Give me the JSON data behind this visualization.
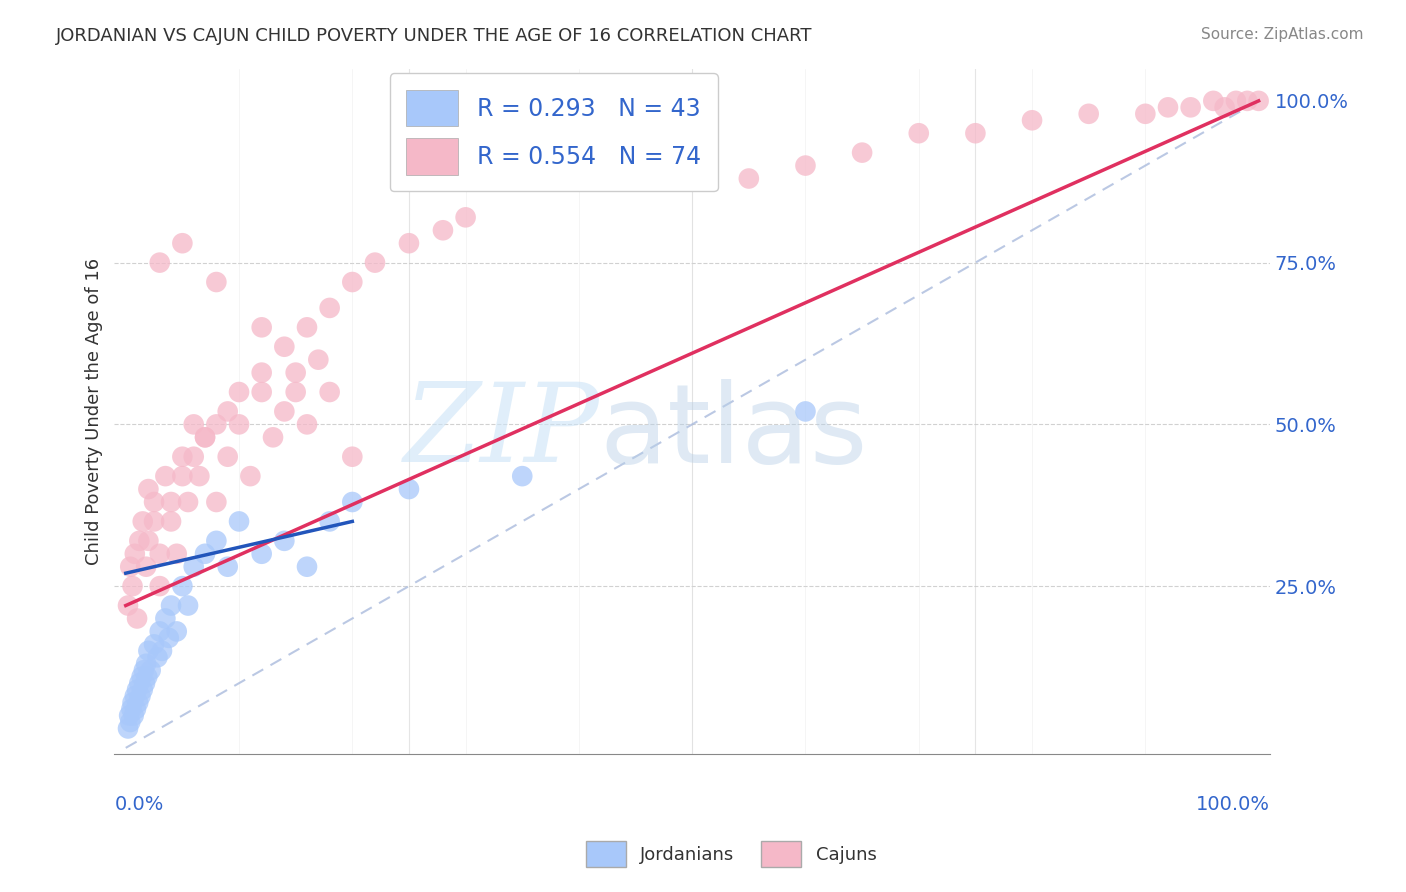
{
  "title": "JORDANIAN VS CAJUN CHILD POVERTY UNDER THE AGE OF 16 CORRELATION CHART",
  "source": "Source: ZipAtlas.com",
  "ylabel": "Child Poverty Under the Age of 16",
  "xlim": [
    -0.01,
    1.01
  ],
  "ylim": [
    -0.01,
    1.05
  ],
  "right_yticks": [
    0.25,
    0.5,
    0.75,
    1.0
  ],
  "right_yticklabels": [
    "25.0%",
    "50.0%",
    "75.0%",
    "100.0%"
  ],
  "x_left_label": "0.0%",
  "x_right_label": "100.0%",
  "legend1_label": "R = 0.293   N = 43",
  "legend2_label": "R = 0.554   N = 74",
  "legend_group1": "Jordanians",
  "legend_group2": "Cajuns",
  "blue_color": "#a8c8fa",
  "pink_color": "#f5b8c8",
  "blue_line_color": "#2255bb",
  "pink_line_color": "#e03060",
  "grid_color": "#cccccc",
  "pink_line_x0": 0.0,
  "pink_line_y0": 0.22,
  "pink_line_x1": 1.0,
  "pink_line_y1": 1.0,
  "blue_line_x0": 0.0,
  "blue_line_y0": 0.27,
  "blue_line_x1": 0.2,
  "blue_line_y1": 0.35,
  "jordanian_x": [
    0.002,
    0.003,
    0.004,
    0.005,
    0.006,
    0.007,
    0.008,
    0.009,
    0.01,
    0.011,
    0.012,
    0.013,
    0.014,
    0.015,
    0.016,
    0.017,
    0.018,
    0.019,
    0.02,
    0.022,
    0.025,
    0.028,
    0.03,
    0.032,
    0.035,
    0.038,
    0.04,
    0.045,
    0.05,
    0.055,
    0.06,
    0.07,
    0.08,
    0.09,
    0.1,
    0.12,
    0.14,
    0.16,
    0.18,
    0.2,
    0.25,
    0.35,
    0.6
  ],
  "jordanian_y": [
    0.03,
    0.05,
    0.04,
    0.06,
    0.07,
    0.05,
    0.08,
    0.06,
    0.09,
    0.07,
    0.1,
    0.08,
    0.11,
    0.09,
    0.12,
    0.1,
    0.13,
    0.11,
    0.15,
    0.12,
    0.16,
    0.14,
    0.18,
    0.15,
    0.2,
    0.17,
    0.22,
    0.18,
    0.25,
    0.22,
    0.28,
    0.3,
    0.32,
    0.28,
    0.35,
    0.3,
    0.32,
    0.28,
    0.35,
    0.38,
    0.4,
    0.42,
    0.52
  ],
  "cajun_x": [
    0.002,
    0.004,
    0.006,
    0.008,
    0.01,
    0.012,
    0.015,
    0.018,
    0.02,
    0.025,
    0.03,
    0.035,
    0.04,
    0.045,
    0.05,
    0.055,
    0.06,
    0.065,
    0.07,
    0.08,
    0.09,
    0.1,
    0.11,
    0.12,
    0.13,
    0.14,
    0.15,
    0.16,
    0.17,
    0.18,
    0.02,
    0.025,
    0.03,
    0.04,
    0.05,
    0.06,
    0.07,
    0.08,
    0.09,
    0.1,
    0.12,
    0.14,
    0.16,
    0.18,
    0.2,
    0.22,
    0.25,
    0.28,
    0.3,
    0.35,
    0.4,
    0.45,
    0.5,
    0.55,
    0.6,
    0.65,
    0.7,
    0.75,
    0.8,
    0.85,
    0.9,
    0.92,
    0.94,
    0.96,
    0.97,
    0.98,
    0.99,
    1.0,
    0.03,
    0.05,
    0.08,
    0.12,
    0.15,
    0.2
  ],
  "cajun_y": [
    0.22,
    0.28,
    0.25,
    0.3,
    0.2,
    0.32,
    0.35,
    0.28,
    0.4,
    0.38,
    0.25,
    0.42,
    0.35,
    0.3,
    0.45,
    0.38,
    0.5,
    0.42,
    0.48,
    0.38,
    0.45,
    0.5,
    0.42,
    0.55,
    0.48,
    0.52,
    0.58,
    0.5,
    0.6,
    0.55,
    0.32,
    0.35,
    0.3,
    0.38,
    0.42,
    0.45,
    0.48,
    0.5,
    0.52,
    0.55,
    0.58,
    0.62,
    0.65,
    0.68,
    0.72,
    0.75,
    0.78,
    0.8,
    0.82,
    0.88,
    0.88,
    0.9,
    0.92,
    0.88,
    0.9,
    0.92,
    0.95,
    0.95,
    0.97,
    0.98,
    0.98,
    0.99,
    0.99,
    1.0,
    0.99,
    1.0,
    1.0,
    1.0,
    0.75,
    0.78,
    0.72,
    0.65,
    0.55,
    0.45
  ]
}
